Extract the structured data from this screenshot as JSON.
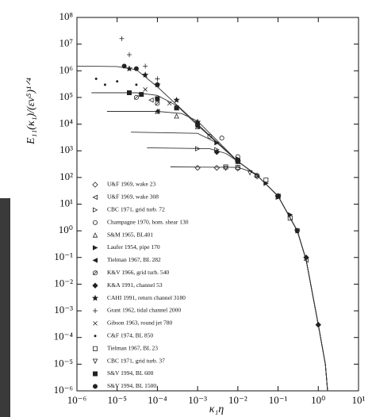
{
  "chart_data": {
    "type": "scatter",
    "x_label": "κ₁η",
    "y_label": "E₁₁(κ₁)/(εν⁵)¹ᐟ⁴",
    "log_x": true,
    "log_y": true,
    "xlim": [
      1e-06,
      10
    ],
    "ylim": [
      1e-06,
      100000000.0
    ],
    "xticks": [
      {
        "value": 1e-06,
        "label": "10⁻⁶"
      },
      {
        "value": 1e-05,
        "label": "10⁻⁵"
      },
      {
        "value": 0.0001,
        "label": "10⁻⁴"
      },
      {
        "value": 0.001,
        "label": "10⁻³"
      },
      {
        "value": 0.01,
        "label": "10⁻²"
      },
      {
        "value": 0.1,
        "label": "10⁻¹"
      },
      {
        "value": 1,
        "label": "10⁰"
      },
      {
        "value": 10,
        "label": "10¹"
      }
    ],
    "yticks": [
      {
        "value": 1e-06,
        "label": "10⁻⁶"
      },
      {
        "value": 1e-05,
        "label": "10⁻⁵"
      },
      {
        "value": 0.0001,
        "label": "10⁻⁴"
      },
      {
        "value": 0.001,
        "label": "10⁻³"
      },
      {
        "value": 0.01,
        "label": "10⁻²"
      },
      {
        "value": 0.1,
        "label": "10⁻¹"
      },
      {
        "value": 1,
        "label": "10⁰"
      },
      {
        "value": 10,
        "label": "10¹"
      },
      {
        "value": 100,
        "label": "10²"
      },
      {
        "value": 1000,
        "label": "10³"
      },
      {
        "value": 10000,
        "label": "10⁴"
      },
      {
        "value": 100000,
        "label": "10⁵"
      },
      {
        "value": 1000000,
        "label": "10⁶"
      },
      {
        "value": 10000000,
        "label": "10⁷"
      },
      {
        "value": 100000000,
        "label": "10⁸"
      }
    ],
    "curve_color": "#333333",
    "curves": [
      {
        "x": [
          1e-06,
          1e-05,
          3e-05,
          0.0001,
          0.001,
          0.01,
          0.03,
          0.1,
          0.3,
          0.5,
          1,
          1.5,
          1.7
        ],
        "values": [
          1500000,
          1450000,
          1100000,
          250000,
          10000,
          400,
          120,
          20,
          1,
          0.08,
          0.0003,
          1e-05,
          1e-06
        ]
      },
      {
        "x": [
          2.3e-06,
          3e-05,
          0.0001,
          0.0003,
          0.001,
          0.01,
          0.03,
          0.1,
          0.3,
          0.5,
          1,
          1.5,
          1.7
        ],
        "values": [
          150000,
          150000,
          120000,
          50000,
          9000,
          400,
          120,
          20,
          1,
          0.08,
          0.0003,
          1e-05,
          1e-06
        ]
      },
      {
        "x": [
          5.6e-06,
          0.0001,
          0.0004,
          0.001,
          0.003,
          0.01,
          0.03,
          0.1,
          0.3,
          0.5,
          1,
          1.5,
          1.7
        ],
        "values": [
          30000,
          30000,
          25000,
          13000,
          2500,
          400,
          120,
          20,
          1,
          0.08,
          0.0003,
          1e-05,
          1e-06
        ]
      },
      {
        "x": [
          2.2e-05,
          0.001,
          0.003,
          0.01,
          0.03,
          0.1,
          0.3,
          0.5,
          1,
          1.5,
          1.7
        ],
        "values": [
          5000,
          4500,
          2000,
          400,
          120,
          20,
          1,
          0.08,
          0.0003,
          1e-05,
          1e-06
        ]
      },
      {
        "x": [
          5.5e-05,
          0.002,
          0.005,
          0.01,
          0.03,
          0.1,
          0.3,
          0.5,
          1,
          1.5,
          1.7
        ],
        "values": [
          1300,
          1200,
          800,
          400,
          120,
          20,
          1,
          0.08,
          0.0003,
          1e-05,
          1e-06
        ]
      },
      {
        "x": [
          0.00021,
          0.01,
          0.02,
          0.03,
          0.1,
          0.3,
          0.5,
          1,
          1.5,
          1.7
        ],
        "values": [
          250,
          240,
          170,
          120,
          20,
          1,
          0.08,
          0.0003,
          1e-05,
          1e-06
        ]
      }
    ],
    "series": [
      {
        "name": "U&F 1969, wake 23",
        "marker": "diamond-open",
        "color": "#222222",
        "x": [
          0.001,
          0.003,
          0.01,
          0.03,
          0.1
        ],
        "values": [
          230,
          230,
          220,
          110,
          20
        ]
      },
      {
        "name": "U&F 1969, wake 308",
        "marker": "triangle-left-open",
        "color": "#222222",
        "x": [
          7e-05,
          0.0003,
          0.001,
          0.01,
          0.1,
          0.5
        ],
        "values": [
          80000,
          40000,
          9000,
          400,
          20,
          0.08
        ]
      },
      {
        "name": "CBC 1971, grid turb. 72",
        "marker": "triangle-right-open",
        "color": "#222222",
        "x": [
          0.001,
          0.003,
          0.01,
          0.03,
          0.1
        ],
        "values": [
          1200,
          1100,
          400,
          120,
          18
        ]
      },
      {
        "name": "Champagne 1970, hom. shear 130",
        "marker": "circle-open",
        "color": "#222222",
        "x": [
          0.002,
          0.004,
          0.01,
          0.03,
          0.1,
          0.3
        ],
        "values": [
          3500,
          3000,
          600,
          120,
          20,
          1
        ]
      },
      {
        "name": "S&M 1965, BL401",
        "marker": "triangle-up-open",
        "color": "#222222",
        "x": [
          0.0001,
          0.0003,
          0.001,
          0.01,
          0.1
        ],
        "values": [
          30000,
          20000,
          8000,
          400,
          20
        ]
      },
      {
        "name": "Laufer 1954, pipe 170",
        "marker": "triangle-right",
        "color": "#222222",
        "x": [
          0.003,
          0.01,
          0.05,
          0.2
        ],
        "values": [
          2000,
          500,
          60,
          4
        ]
      },
      {
        "name": "Tielman 1967, BL 282",
        "marker": "triangle-left",
        "color": "#222222",
        "x": [
          0.0001,
          0.001,
          0.01,
          0.1
        ],
        "values": [
          30000,
          8000,
          400,
          20
        ]
      },
      {
        "name": "K&V 1966, grid turb. 540",
        "marker": "circle-slash",
        "color": "#222222",
        "x": [
          3e-05,
          0.0001,
          0.001,
          0.01
        ],
        "values": [
          100000,
          60000,
          10000,
          450
        ]
      },
      {
        "name": "K&A 1991, channel 53",
        "marker": "diamond",
        "color": "#222222",
        "x": [
          0.003,
          0.01,
          0.1,
          0.5,
          1
        ],
        "values": [
          900,
          400,
          20,
          0.1,
          0.0003
        ]
      },
      {
        "name": "CAHI 1991, return channel 3180",
        "marker": "star",
        "color": "#222222",
        "x": [
          2e-05,
          5e-05,
          0.0001,
          0.0003,
          0.001,
          0.01,
          0.1,
          0.3
        ],
        "values": [
          1200000,
          700000,
          300000,
          80000,
          12000,
          400,
          20,
          1
        ]
      },
      {
        "name": "Grant 1962, tidal channel 2000",
        "marker": "plus",
        "color": "#222222",
        "x": [
          1.3e-05,
          2e-05,
          5e-05,
          0.0001
        ],
        "values": [
          16000000,
          4000000,
          1500000,
          500000
        ]
      },
      {
        "name": "Gibson 1963, round jet 780",
        "marker": "cross",
        "color": "#222222",
        "x": [
          5e-05,
          0.0002,
          0.001
        ],
        "values": [
          200000,
          60000,
          10000
        ]
      },
      {
        "name": "C&F 1974, BL 850",
        "marker": "dot",
        "color": "#222222",
        "x": [
          3e-06,
          5e-06,
          1e-05,
          3e-05
        ],
        "values": [
          500000,
          300000,
          400000,
          300000
        ]
      },
      {
        "name": "Tielman 1967, BL 23",
        "marker": "square-open",
        "color": "#222222",
        "x": [
          0.005,
          0.01,
          0.05,
          0.2
        ],
        "values": [
          250,
          240,
          80,
          3
        ]
      },
      {
        "name": "CBC 1971, grid turb. 37",
        "marker": "triangle-down-open",
        "color": "#222222",
        "x": [
          0.005,
          0.02,
          0.1,
          0.3
        ],
        "values": [
          220,
          150,
          20,
          1
        ]
      },
      {
        "name": "S&V 1994, BL 600",
        "marker": "square",
        "color": "#222222",
        "x": [
          2e-05,
          4e-05,
          0.0001,
          0.0003
        ],
        "values": [
          150000,
          130000,
          90000,
          40000
        ]
      },
      {
        "name": "S&V 1994, BL 1500",
        "marker": "circle",
        "color": "#222222",
        "x": [
          1.5e-05,
          3e-05,
          0.0001,
          0.001
        ],
        "values": [
          1500000,
          1200000,
          300000,
          10000
        ]
      }
    ]
  }
}
